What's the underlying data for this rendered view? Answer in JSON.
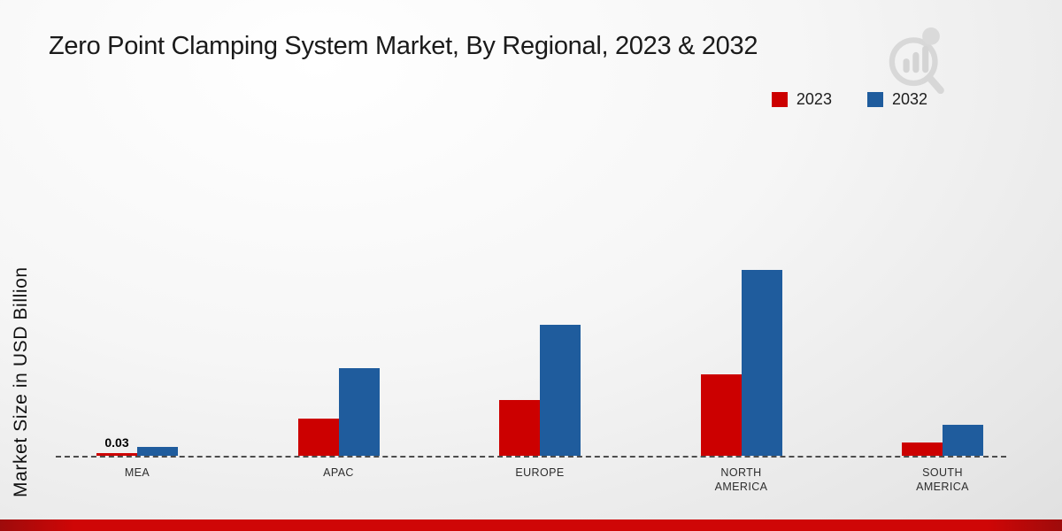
{
  "chart_data": {
    "type": "bar",
    "title": "Zero Point Clamping System Market, By Regional, 2023 & 2032",
    "ylabel": "Market Size in USD Billion",
    "categories": [
      "MEA",
      "APAC",
      "EUROPE",
      "NORTH AMERICA",
      "SOUTH AMERICA"
    ],
    "series": [
      {
        "name": "2023",
        "color": "#cc0000",
        "values": [
          0.03,
          0.42,
          0.63,
          0.92,
          0.15
        ]
      },
      {
        "name": "2032",
        "color": "#1f5c9d",
        "values": [
          0.1,
          0.99,
          1.48,
          2.1,
          0.35
        ]
      }
    ],
    "value_labels": [
      {
        "series_index": 0,
        "category_index": 0,
        "text": "0.03"
      }
    ],
    "legend_position": "top-right",
    "baseline_style": "dashed",
    "grid": false,
    "ylim": [
      0,
      2.3
    ]
  },
  "branding": {
    "logo_icon": "bar-chart-magnifier-logo"
  },
  "footer": {
    "band_color": "#cf0606"
  }
}
